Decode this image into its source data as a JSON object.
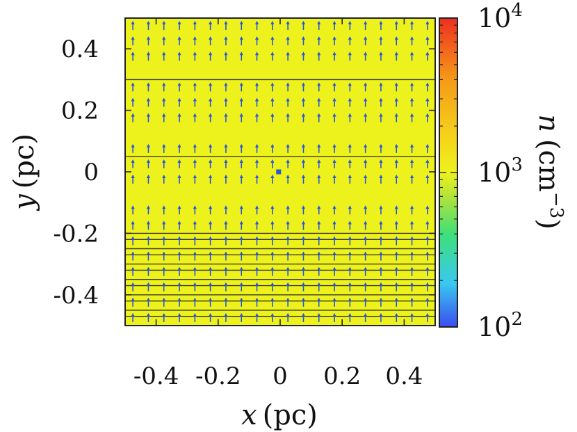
{
  "chart_data": {
    "type": "heatmap",
    "title": "",
    "xlabel": {
      "var": "x",
      "unit": "(pc)"
    },
    "ylabel": {
      "var": "y",
      "unit": "(pc)"
    },
    "xlim": [
      -0.5,
      0.5
    ],
    "ylim": [
      -0.5,
      0.5
    ],
    "x_ticks": [
      -0.4,
      -0.2,
      0,
      0.2,
      0.4
    ],
    "x_tick_labels": [
      "-0.4",
      "-0.2",
      "0",
      "0.2",
      "0.4"
    ],
    "y_ticks": [
      0.4,
      0.2,
      0,
      -0.2,
      -0.4
    ],
    "y_tick_labels": [
      "0.4",
      "0.2",
      "0",
      "-0.2",
      "-0.4"
    ],
    "field_value_cm3": 1500,
    "field_color": "#eef21c",
    "colorbar": {
      "label": {
        "var": "n",
        "unit": "(cm",
        "exp": "−3",
        "close": ")"
      },
      "scale": "log",
      "range": [
        100,
        10000
      ],
      "ticks": [
        {
          "value": 10000,
          "base": "10",
          "exp": "4"
        },
        {
          "value": 1000,
          "base": "10",
          "exp": "3"
        },
        {
          "value": 100,
          "base": "10",
          "exp": "2"
        }
      ],
      "colormap": [
        "#3b4cf0",
        "#38c8f0",
        "#3ee07a",
        "#b0e23a",
        "#eef21c",
        "#f5d21a",
        "#f59a18",
        "#ee3020"
      ]
    },
    "contour_levels_y": [
      0.3,
      0.05,
      -0.2,
      -0.22,
      -0.25,
      -0.27,
      -0.3,
      -0.32,
      -0.35,
      -0.37,
      -0.4,
      -0.42,
      -0.45,
      -0.47
    ],
    "vector_field": {
      "x": [
        -0.475,
        -0.425,
        -0.375,
        -0.325,
        -0.275,
        -0.225,
        -0.175,
        -0.125,
        -0.075,
        -0.025,
        0.025,
        0.075,
        0.125,
        0.175,
        0.225,
        0.275,
        0.325,
        0.375,
        0.425,
        0.475
      ],
      "y": [
        0.475,
        0.425,
        0.375,
        0.275,
        0.225,
        0.175,
        0.075,
        0.025,
        -0.025,
        -0.125,
        -0.175,
        -0.225,
        -0.275,
        -0.325,
        -0.375,
        -0.425,
        -0.475
      ],
      "direction": "up",
      "color": "#2a55d8"
    },
    "marker": {
      "x": -0.005,
      "y": 0.0,
      "color": "#2a55d8"
    }
  }
}
